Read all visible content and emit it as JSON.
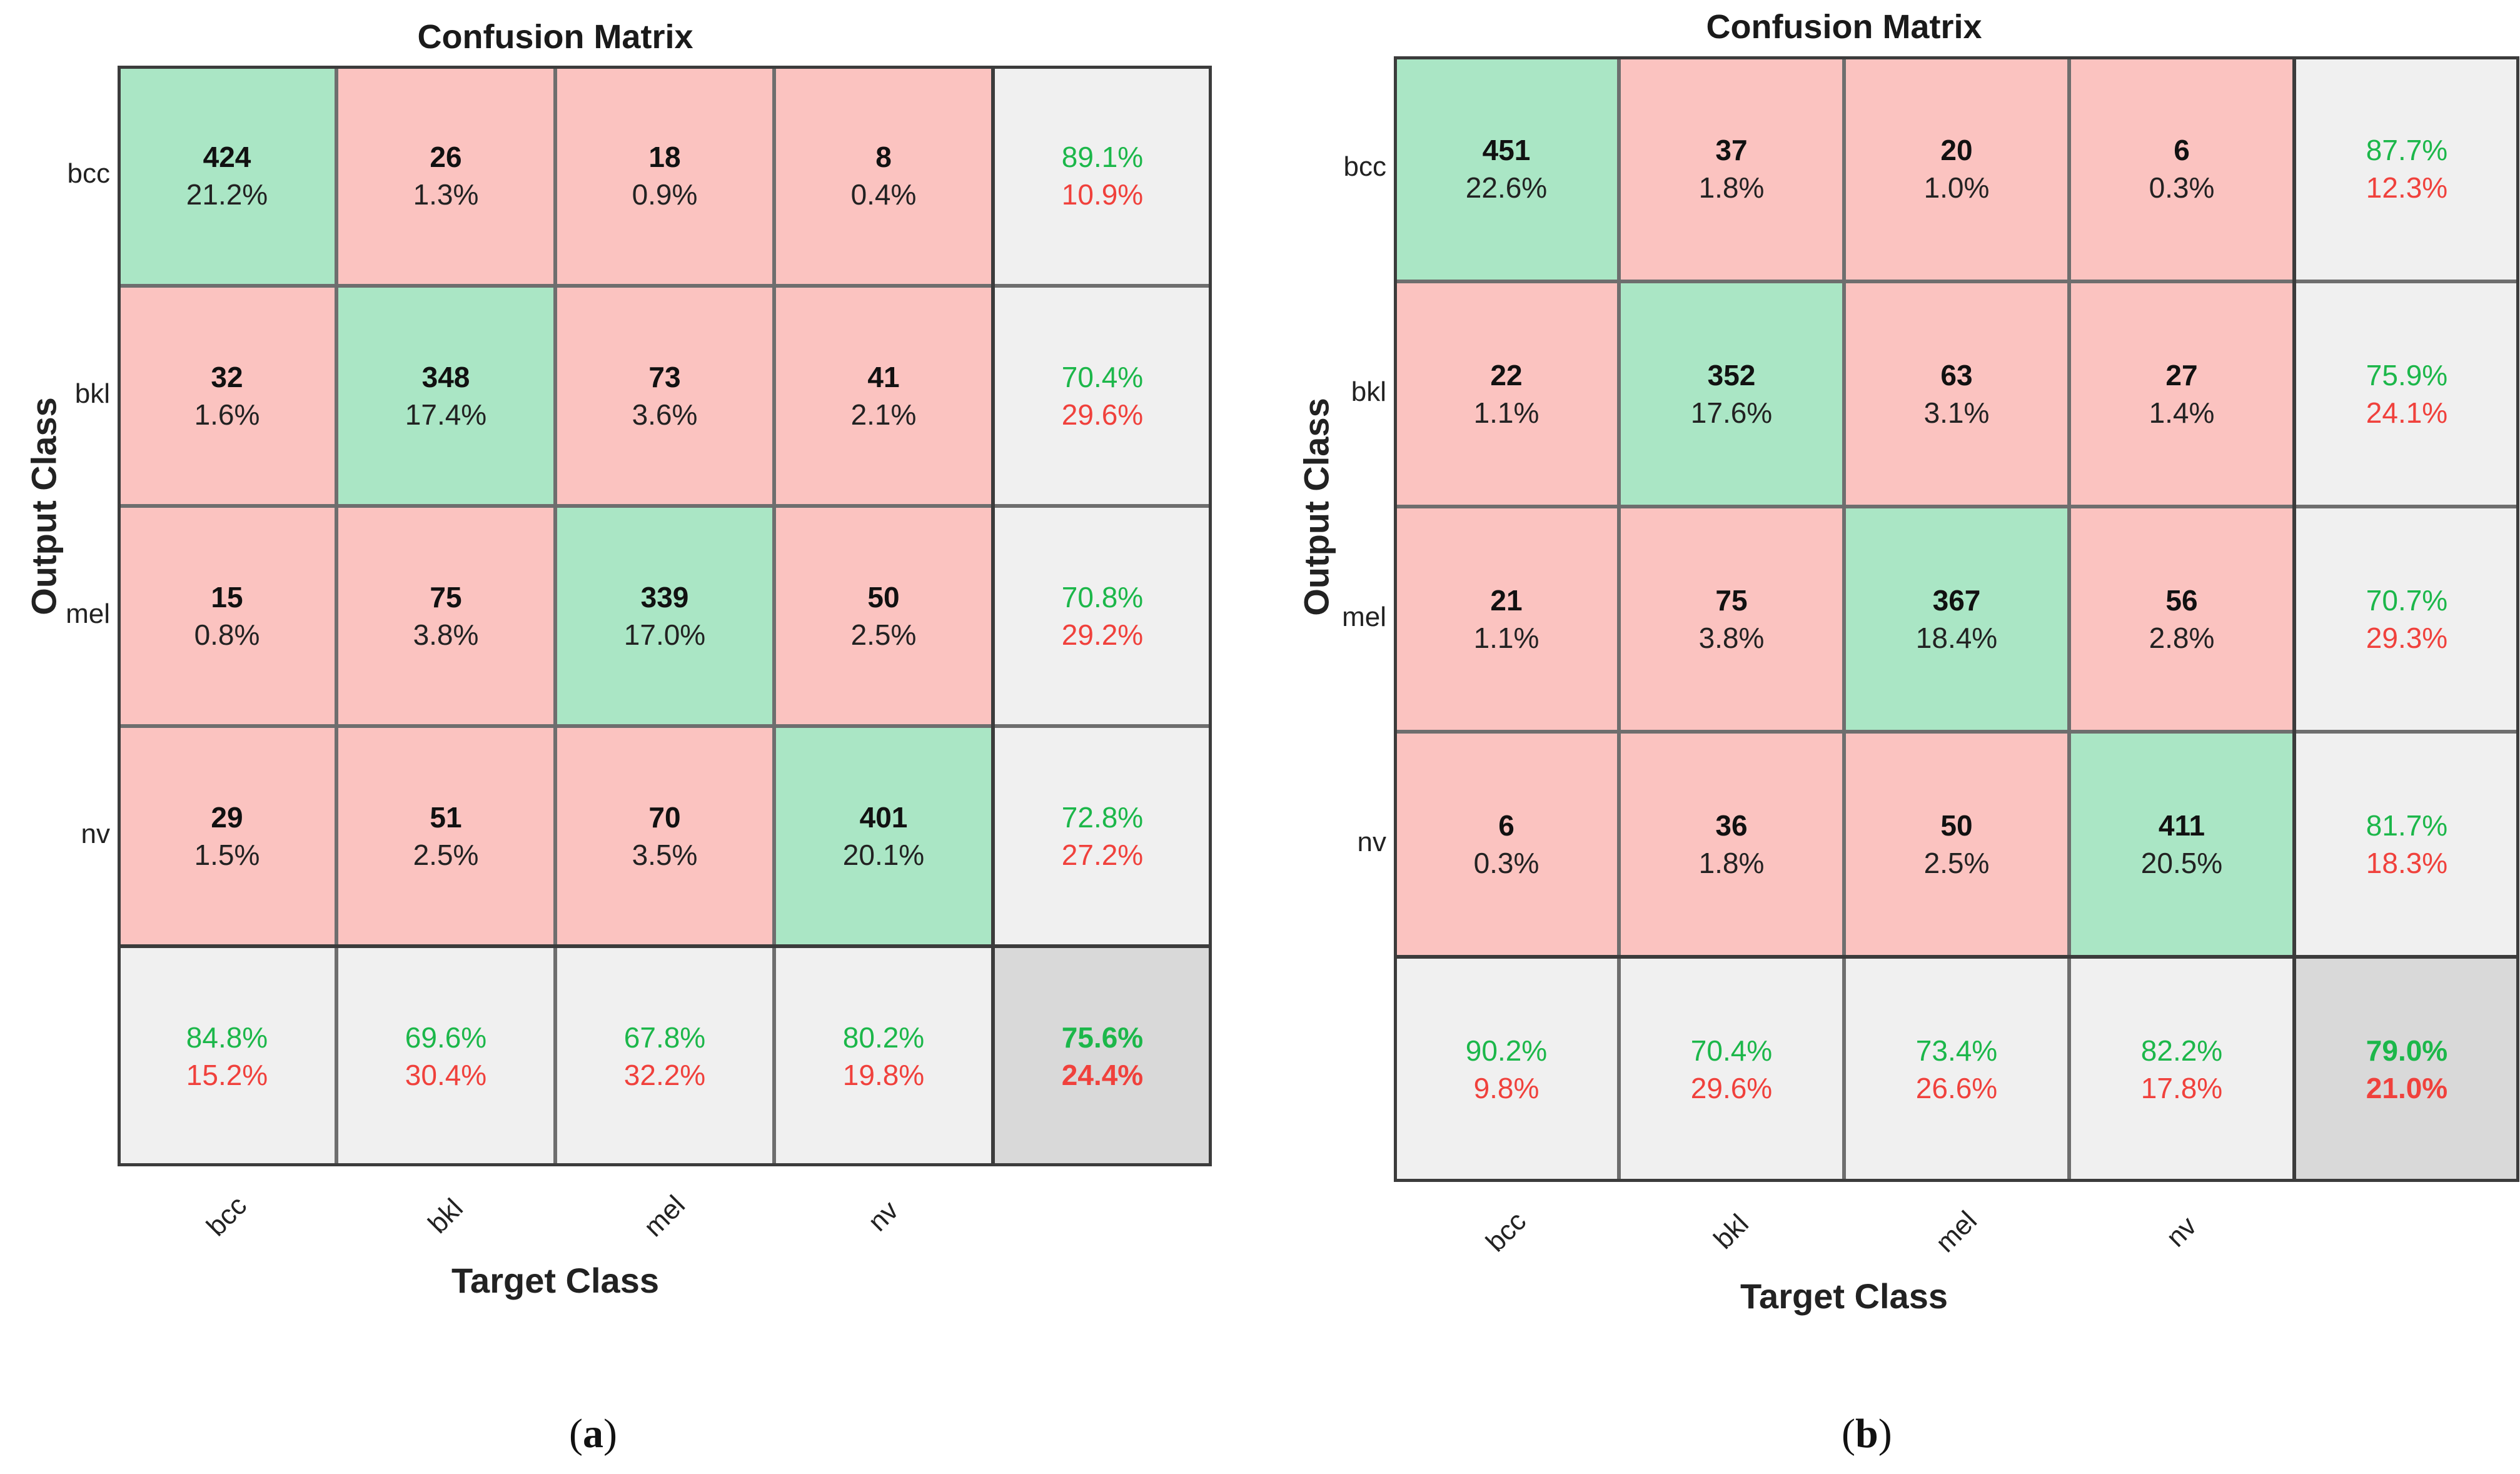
{
  "chart_data": [
    {
      "type": "heatmap",
      "subtype": "confusion-matrix",
      "panel_label": "a",
      "title": "Confusion Matrix",
      "xlabel": "Target Class",
      "ylabel": "Output Class",
      "classes": [
        "bcc",
        "bkl",
        "mel",
        "nv"
      ],
      "counts": [
        [
          424,
          26,
          18,
          8
        ],
        [
          32,
          348,
          73,
          41
        ],
        [
          15,
          75,
          339,
          50
        ],
        [
          29,
          51,
          70,
          401
        ]
      ],
      "percents": [
        [
          "21.2%",
          "1.3%",
          "0.9%",
          "0.4%"
        ],
        [
          "1.6%",
          "17.4%",
          "3.6%",
          "2.1%"
        ],
        [
          "0.8%",
          "3.8%",
          "17.0%",
          "2.5%"
        ],
        [
          "1.5%",
          "2.5%",
          "3.5%",
          "20.1%"
        ]
      ],
      "row_summary": [
        [
          "89.1%",
          "10.9%"
        ],
        [
          "70.4%",
          "29.6%"
        ],
        [
          "70.8%",
          "29.2%"
        ],
        [
          "72.8%",
          "27.2%"
        ]
      ],
      "col_summary": [
        [
          "84.8%",
          "15.2%"
        ],
        [
          "69.6%",
          "30.4%"
        ],
        [
          "67.8%",
          "32.2%"
        ],
        [
          "80.2%",
          "19.8%"
        ]
      ],
      "overall": [
        "75.6%",
        "24.4%"
      ]
    },
    {
      "type": "heatmap",
      "subtype": "confusion-matrix",
      "panel_label": "b",
      "title": "Confusion Matrix",
      "xlabel": "Target Class",
      "ylabel": "Output Class",
      "classes": [
        "bcc",
        "bkl",
        "mel",
        "nv"
      ],
      "counts": [
        [
          451,
          37,
          20,
          6
        ],
        [
          22,
          352,
          63,
          27
        ],
        [
          21,
          75,
          367,
          56
        ],
        [
          6,
          36,
          50,
          411
        ]
      ],
      "percents": [
        [
          "22.6%",
          "1.8%",
          "1.0%",
          "0.3%"
        ],
        [
          "1.1%",
          "17.6%",
          "3.1%",
          "1.4%"
        ],
        [
          "1.1%",
          "3.8%",
          "18.4%",
          "2.8%"
        ],
        [
          "0.3%",
          "1.8%",
          "2.5%",
          "20.5%"
        ]
      ],
      "row_summary": [
        [
          "87.7%",
          "12.3%"
        ],
        [
          "75.9%",
          "24.1%"
        ],
        [
          "70.7%",
          "29.3%"
        ],
        [
          "81.7%",
          "18.3%"
        ]
      ],
      "col_summary": [
        [
          "90.2%",
          "9.8%"
        ],
        [
          "70.4%",
          "29.6%"
        ],
        [
          "73.4%",
          "26.6%"
        ],
        [
          "82.2%",
          "17.8%"
        ]
      ],
      "overall": [
        "79.0%",
        "21.0%"
      ]
    }
  ],
  "colors": {
    "diagonal": "#aae6c5",
    "off_diagonal": "#fbc3c0",
    "summary": "#f0f0f0",
    "total": "#d9d9d9",
    "good_text": "#1cb74a",
    "bad_text": "#f0413c"
  }
}
